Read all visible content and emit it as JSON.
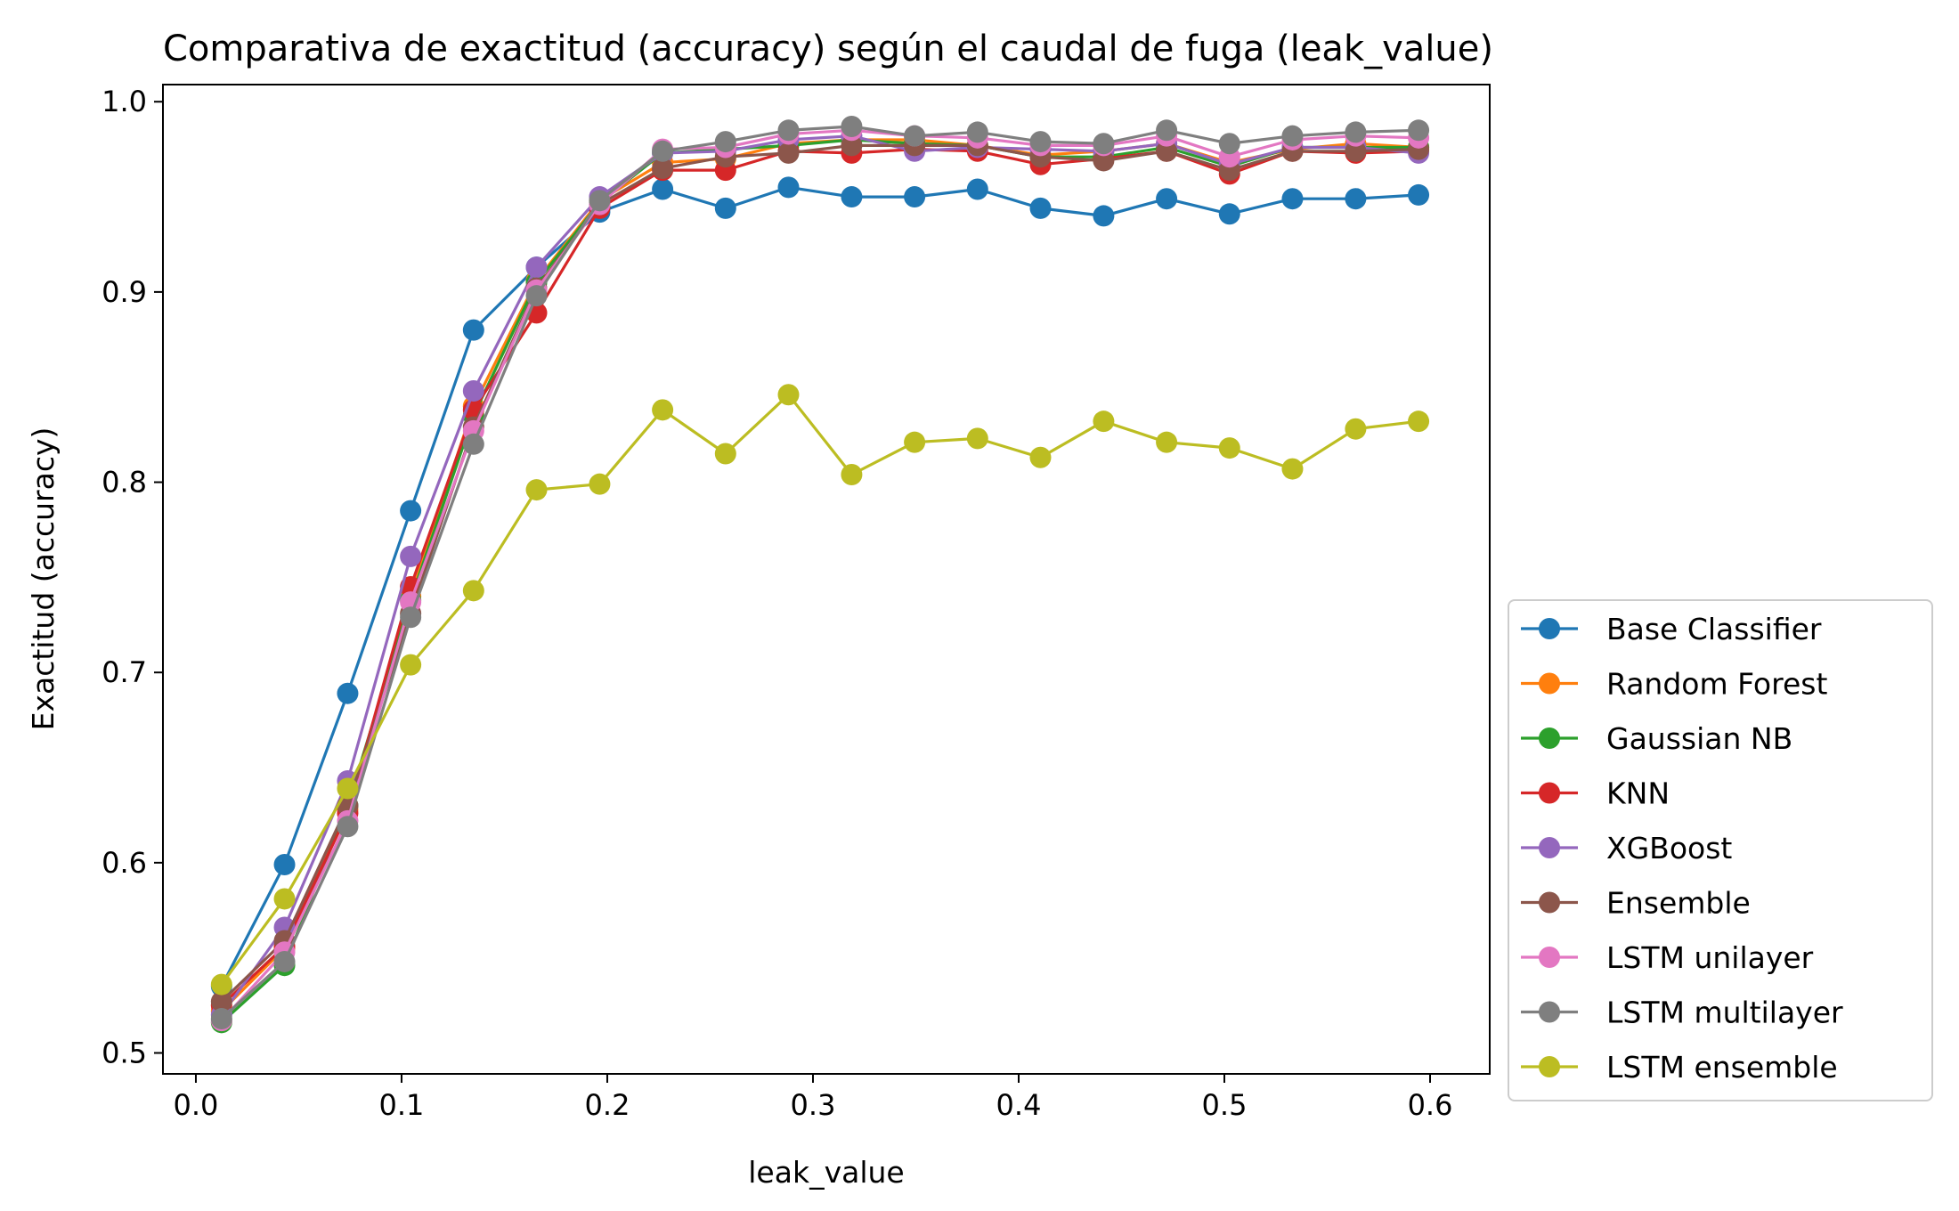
{
  "chart_data": {
    "type": "line",
    "title": "Comparativa de exactitud (accuracy) según el caudal de fuga (leak_value)",
    "xlabel": "leak_value",
    "ylabel": "Exactitud (accuracy)",
    "xlim": [
      -0.016,
      0.629
    ],
    "ylim": [
      0.489,
      1.009
    ],
    "xticks": [
      0.0,
      0.1,
      0.2,
      0.3,
      0.4,
      0.5,
      0.6
    ],
    "xtick_labels": [
      "0.0",
      "0.1",
      "0.2",
      "0.3",
      "0.4",
      "0.5",
      "0.6"
    ],
    "yticks": [
      0.5,
      0.6,
      0.7,
      0.8,
      0.9,
      1.0
    ],
    "ytick_labels": [
      "0.5",
      "0.6",
      "0.7",
      "0.8",
      "0.9",
      "1.0"
    ],
    "grid": false,
    "legend_position": "lower-right-outside",
    "x": [
      0.0125,
      0.0431,
      0.0738,
      0.1044,
      0.135,
      0.1656,
      0.1963,
      0.2269,
      0.2575,
      0.2881,
      0.3188,
      0.3494,
      0.38,
      0.4106,
      0.4413,
      0.4719,
      0.5025,
      0.5331,
      0.5638,
      0.5944
    ],
    "series": [
      {
        "name": "Base Classifier",
        "color": "#1f77b4",
        "values": [
          0.535,
          0.599,
          0.689,
          0.785,
          0.88,
          0.913,
          0.942,
          0.954,
          0.944,
          0.955,
          0.95,
          0.95,
          0.954,
          0.944,
          0.94,
          0.949,
          0.941,
          0.949,
          0.949,
          0.951
        ]
      },
      {
        "name": "Random Forest",
        "color": "#ff7f0e",
        "values": [
          0.522,
          0.555,
          0.628,
          0.74,
          0.84,
          0.906,
          0.948,
          0.968,
          0.97,
          0.978,
          0.98,
          0.98,
          0.977,
          0.972,
          0.974,
          0.978,
          0.968,
          0.975,
          0.978,
          0.976
        ]
      },
      {
        "name": "Gaussian NB",
        "color": "#2ca02c",
        "values": [
          0.516,
          0.546,
          0.63,
          0.738,
          0.835,
          0.905,
          0.947,
          0.973,
          0.975,
          0.977,
          0.98,
          0.978,
          0.977,
          0.971,
          0.971,
          0.976,
          0.966,
          0.976,
          0.976,
          0.976
        ]
      },
      {
        "name": "KNN",
        "color": "#d62728",
        "values": [
          0.525,
          0.556,
          0.626,
          0.745,
          0.838,
          0.889,
          0.944,
          0.964,
          0.964,
          0.974,
          0.973,
          0.975,
          0.974,
          0.967,
          0.97,
          0.974,
          0.962,
          0.974,
          0.973,
          0.974
        ]
      },
      {
        "name": "XGBoost",
        "color": "#9467bd",
        "values": [
          0.52,
          0.566,
          0.643,
          0.761,
          0.848,
          0.913,
          0.95,
          0.973,
          0.974,
          0.98,
          0.982,
          0.974,
          0.976,
          0.975,
          0.974,
          0.978,
          0.967,
          0.976,
          0.976,
          0.973
        ]
      },
      {
        "name": "Ensemble",
        "color": "#8c564b",
        "values": [
          0.527,
          0.559,
          0.63,
          0.731,
          0.829,
          0.902,
          0.946,
          0.965,
          0.971,
          0.973,
          0.977,
          0.977,
          0.977,
          0.971,
          0.969,
          0.974,
          0.964,
          0.974,
          0.974,
          0.975
        ]
      },
      {
        "name": "LSTM unilayer",
        "color": "#e377c2",
        "values": [
          0.517,
          0.553,
          0.622,
          0.737,
          0.827,
          0.901,
          0.946,
          0.975,
          0.976,
          0.983,
          0.985,
          0.982,
          0.981,
          0.977,
          0.977,
          0.982,
          0.971,
          0.98,
          0.982,
          0.981
        ]
      },
      {
        "name": "LSTM multilayer",
        "color": "#7f7f7f",
        "values": [
          0.518,
          0.548,
          0.619,
          0.729,
          0.82,
          0.898,
          0.948,
          0.974,
          0.979,
          0.985,
          0.987,
          0.982,
          0.984,
          0.979,
          0.978,
          0.985,
          0.978,
          0.982,
          0.984,
          0.985
        ]
      },
      {
        "name": "LSTM ensemble",
        "color": "#bcbd22",
        "values": [
          0.536,
          0.581,
          0.639,
          0.704,
          0.743,
          0.796,
          0.799,
          0.838,
          0.815,
          0.846,
          0.804,
          0.821,
          0.823,
          0.813,
          0.832,
          0.821,
          0.818,
          0.807,
          0.828,
          0.832
        ]
      }
    ]
  }
}
